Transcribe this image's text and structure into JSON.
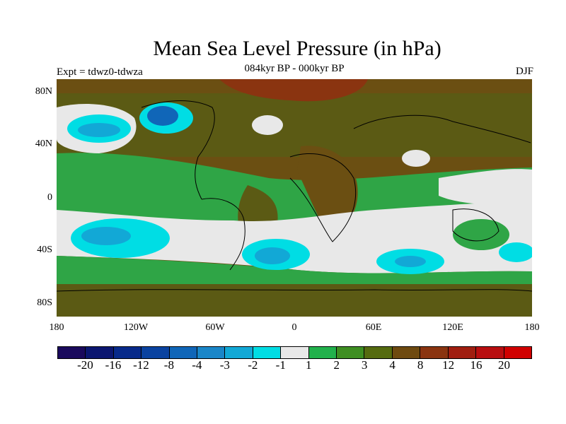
{
  "title": "Mean Sea Level Pressure (in hPa)",
  "subtitle": "084kyr BP - 000kyr BP",
  "experiment": "Expt = tdwz0-tdwza",
  "season": "DJF",
  "lat_labels": [
    "80N",
    "40N",
    "0",
    "40S",
    "80S"
  ],
  "lon_labels": [
    "180",
    "120W",
    "60W",
    "0",
    "60E",
    "120E",
    "180"
  ],
  "colorbar": {
    "labels": [
      "-20",
      "-16",
      "-12",
      "-8",
      "-4",
      "-3",
      "-2",
      "-1",
      "1",
      "2",
      "3",
      "4",
      "8",
      "12",
      "16",
      "20"
    ],
    "colors": [
      "#1a0a5c",
      "#0b1770",
      "#072a8a",
      "#0a43a0",
      "#1066b8",
      "#1a86c8",
      "#12a8d6",
      "#00dde4",
      "#e8e8e8",
      "#22b14c",
      "#3e8e22",
      "#556b10",
      "#6e4a10",
      "#8a3410",
      "#a01e10",
      "#b80e10",
      "#d00000"
    ]
  },
  "colors": {
    "land_outline": "#000000",
    "brown": "#6e4a10",
    "olive": "#556b10",
    "green": "#3e8e22",
    "bright_green": "#22b14c",
    "white": "#e8e8e8",
    "cyan": "#00dde4",
    "blue": "#12a8d6",
    "dark_blue": "#1066b8"
  }
}
